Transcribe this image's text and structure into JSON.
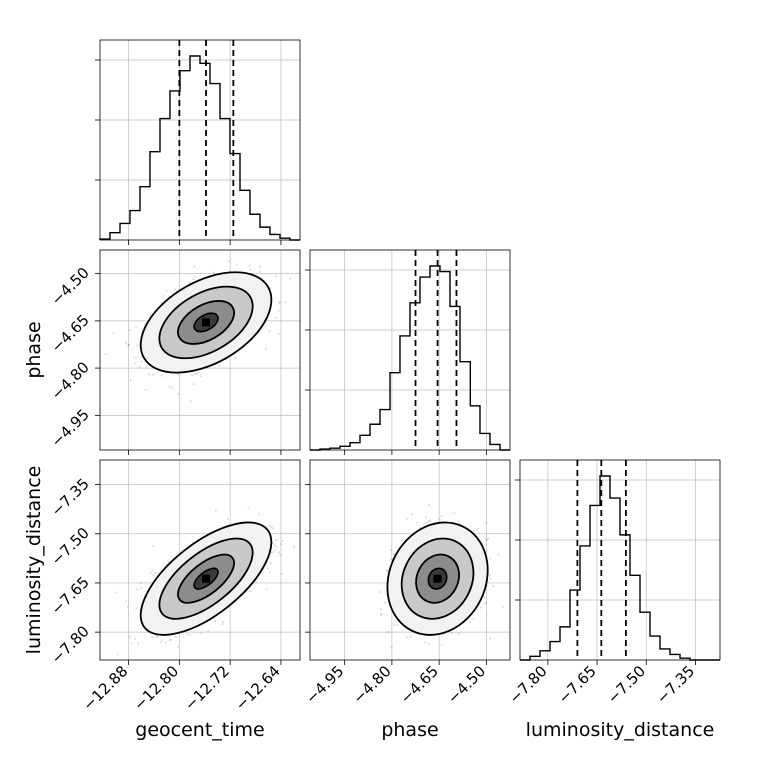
{
  "chart_data": {
    "type": "corner",
    "parameters": [
      "geocent_time",
      "phase",
      "luminosity_distance"
    ],
    "xlabels": [
      "geocent_time",
      "phase",
      "luminosity_distance"
    ],
    "ylabels": [
      "",
      "phase",
      "luminosity_distance"
    ],
    "grid": true,
    "ranges": {
      "geocent_time": [
        -12.925,
        -12.61
      ],
      "phase": [
        -5.06,
        -4.425
      ],
      "luminosity_distance": [
        -7.885,
        -7.275
      ]
    },
    "ticks": {
      "geocent_time": [
        -12.88,
        -12.8,
        -12.72,
        -12.64
      ],
      "phase": [
        -4.95,
        -4.8,
        -4.65,
        -4.5
      ],
      "luminosity_distance": [
        -7.8,
        -7.65,
        -7.5,
        -7.35
      ]
    },
    "tick_labels": {
      "geocent_time": [
        "−12.88",
        "−12.80",
        "−12.72",
        "−12.64"
      ],
      "phase": [
        "−4.95",
        "−4.80",
        "−4.65",
        "−4.50"
      ],
      "luminosity_distance": [
        "−7.80",
        "−7.65",
        "−7.50",
        "−7.35"
      ]
    },
    "quantiles": {
      "geocent_time": [
        -12.8,
        -12.758,
        -12.715
      ],
      "phase": [
        -4.725,
        -4.655,
        -4.595
      ],
      "luminosity_distance": [
        -7.71,
        -7.637,
        -7.562
      ]
    },
    "histograms": {
      "geocent_time": {
        "edges": [
          -12.925,
          -12.9093,
          -12.8935,
          -12.8778,
          -12.862,
          -12.8463,
          -12.8305,
          -12.8148,
          -12.799,
          -12.7833,
          -12.7675,
          -12.7518,
          -12.736,
          -12.7203,
          -12.7045,
          -12.6888,
          -12.673,
          -12.6573,
          -12.6415,
          -12.6258,
          -12.61
        ],
        "counts": [
          0.5,
          4,
          9,
          16,
          29,
          48,
          66,
          81,
          92,
          100,
          96,
          85,
          66,
          47,
          27,
          14,
          7,
          3,
          1,
          0
        ]
      },
      "phase": {
        "edges": [
          -5.06,
          -5.0283,
          -4.9965,
          -4.9648,
          -4.933,
          -4.9013,
          -4.8695,
          -4.8378,
          -4.806,
          -4.7743,
          -4.7425,
          -4.7108,
          -4.679,
          -4.6473,
          -4.6155,
          -4.5838,
          -4.551,
          -4.5203,
          -4.4885,
          -4.4568,
          -4.425
        ],
        "counts": [
          0,
          0.5,
          1,
          2,
          4,
          8,
          14,
          22,
          42,
          62,
          80,
          94,
          100,
          97,
          78,
          48,
          24,
          9,
          3,
          0
        ]
      },
      "luminosity_distance": {
        "edges": [
          -7.885,
          -7.8545,
          -7.824,
          -7.7935,
          -7.763,
          -7.7325,
          -7.702,
          -7.6715,
          -7.641,
          -7.6105,
          -7.58,
          -7.5495,
          -7.519,
          -7.4885,
          -7.458,
          -7.4275,
          -7.397,
          -7.3665,
          -7.336,
          -7.3055,
          -7.275
        ],
        "counts": [
          0,
          2,
          5,
          10,
          18,
          38,
          62,
          84,
          100,
          88,
          68,
          46,
          26,
          13,
          6,
          3,
          1,
          0,
          0,
          0
        ]
      }
    },
    "pairs": [
      {
        "x": "geocent_time",
        "y": "phase",
        "mean": [
          -12.758,
          -4.655
        ],
        "sd": [
          0.042,
          0.065
        ],
        "rho": 0.45
      },
      {
        "x": "geocent_time",
        "y": "luminosity_distance",
        "mean": [
          -12.758,
          -7.637
        ],
        "sd": [
          0.042,
          0.07
        ],
        "rho": 0.65
      },
      {
        "x": "phase",
        "y": "luminosity_distance",
        "mean": [
          -4.655,
          -7.637
        ],
        "sd": [
          0.065,
          0.07
        ],
        "rho": 0.15
      }
    ]
  }
}
